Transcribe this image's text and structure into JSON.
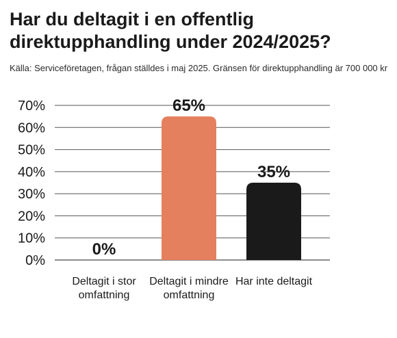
{
  "chart_data": {
    "type": "bar",
    "title": "Har du deltagit i en offentlig direktupphandling under 2024/2025?",
    "subtitle": "Källa: Serviceföretagen, frågan ställdes i maj 2025. Gränsen för direktupphandling är 700 000 kr",
    "categories": [
      "Deltagit i stor omfattning",
      "Deltagit i mindre omfattning",
      "Har inte deltagit"
    ],
    "values": [
      0,
      65,
      35
    ],
    "value_labels": [
      "0%",
      "65%",
      "35%"
    ],
    "bar_colors": [
      "#e4805e",
      "#e4805e",
      "#1a1a1a"
    ],
    "yticks": [
      "0%",
      "10%",
      "20%",
      "30%",
      "40%",
      "50%",
      "60%",
      "70%"
    ],
    "ylim": [
      0,
      70
    ],
    "grid": true,
    "legend": "none"
  }
}
